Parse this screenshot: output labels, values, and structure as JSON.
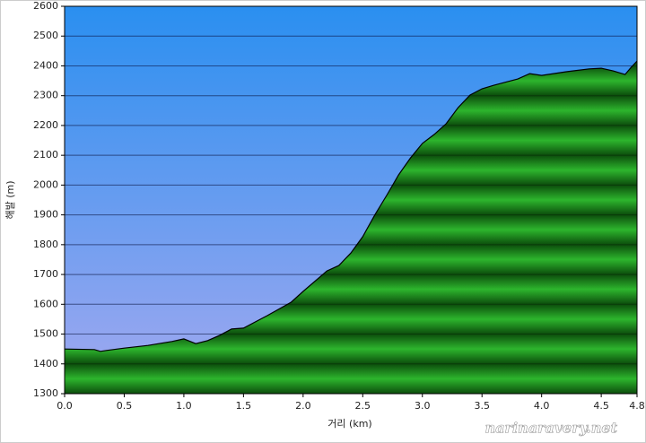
{
  "chart_data": {
    "type": "area",
    "x_label": "거리 (km)",
    "y_label": "해발 (m)",
    "watermark": "narinaravery.net",
    "x": [
      0,
      0.25,
      0.3,
      0.35,
      0.5,
      0.7,
      0.9,
      1.0,
      1.1,
      1.2,
      1.3,
      1.4,
      1.5,
      1.7,
      1.9,
      2.0,
      2.2,
      2.3,
      2.4,
      2.5,
      2.6,
      2.7,
      2.8,
      2.9,
      3.0,
      3.1,
      3.2,
      3.3,
      3.4,
      3.5,
      3.6,
      3.8,
      3.9,
      4.0,
      4.2,
      4.4,
      4.5,
      4.6,
      4.7,
      4.75,
      4.8
    ],
    "values": [
      1450,
      1448,
      1442,
      1445,
      1453,
      1462,
      1475,
      1484,
      1468,
      1478,
      1496,
      1517,
      1520,
      1562,
      1607,
      1643,
      1712,
      1730,
      1772,
      1827,
      1899,
      1965,
      2034,
      2091,
      2140,
      2170,
      2206,
      2260,
      2302,
      2323,
      2335,
      2356,
      2374,
      2368,
      2380,
      2390,
      2392,
      2383,
      2371,
      2395,
      2416
    ],
    "color": "#22a022",
    "line_color": "#000000",
    "xlim": [
      0,
      4.8
    ],
    "xticks": [
      {
        "value": 0,
        "label": "0.0"
      },
      0.5,
      {
        "value": 1,
        "label": "1.0"
      },
      1.5,
      {
        "value": 2,
        "label": "2.0"
      },
      2.5,
      {
        "value": 3,
        "label": "3.0"
      },
      3.5,
      {
        "value": 4,
        "label": "4.0"
      },
      4.5,
      4.8
    ],
    "ylim": [
      1300,
      2600
    ],
    "yticks": [
      1300,
      1400,
      1500,
      1600,
      1700,
      1800,
      1900,
      2000,
      2100,
      2200,
      2300,
      2400,
      2500,
      2600
    ],
    "grid": true
  }
}
